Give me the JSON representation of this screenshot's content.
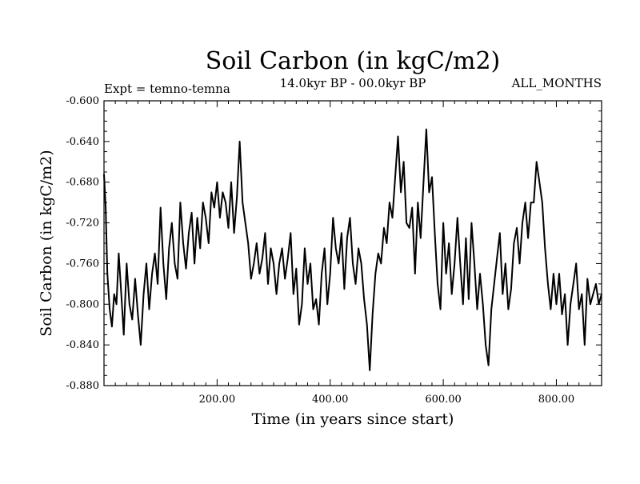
{
  "chart_data": {
    "type": "line",
    "title": "Soil Carbon (in kgC/m2)",
    "subtitle_left": "Expt = temno-temna",
    "subtitle_center": "14.0kyr BP - 00.0kyr BP",
    "subtitle_right": "ALL_MONTHS",
    "xlabel": "Time (in years since start)",
    "ylabel": "Soil Carbon (in kgC/m2)",
    "xlim": [
      0,
      880
    ],
    "ylim": [
      -0.88,
      -0.6
    ],
    "xticks": [
      200,
      400,
      600,
      800
    ],
    "xtick_labels": [
      "200.00",
      "400.00",
      "600.00",
      "800.00"
    ],
    "yticks": [
      -0.6,
      -0.64,
      -0.68,
      -0.72,
      -0.76,
      -0.8,
      -0.84,
      -0.88
    ],
    "ytick_labels": [
      "-0.600",
      "-0.640",
      "-0.680",
      "-0.720",
      "-0.760",
      "-0.800",
      "-0.840",
      "-0.880"
    ],
    "series": [
      {
        "name": "Soil Carbon",
        "x": [
          0,
          3,
          6,
          10,
          14,
          18,
          22,
          26,
          30,
          35,
          40,
          45,
          50,
          55,
          60,
          65,
          70,
          75,
          80,
          85,
          90,
          95,
          100,
          105,
          110,
          115,
          120,
          125,
          130,
          135,
          140,
          145,
          150,
          155,
          160,
          165,
          170,
          175,
          180,
          185,
          190,
          195,
          200,
          205,
          210,
          215,
          220,
          225,
          230,
          235,
          240,
          245,
          250,
          255,
          260,
          265,
          270,
          275,
          280,
          285,
          290,
          295,
          300,
          305,
          310,
          315,
          320,
          325,
          330,
          335,
          340,
          345,
          350,
          355,
          360,
          365,
          370,
          375,
          380,
          385,
          390,
          395,
          400,
          405,
          410,
          415,
          420,
          425,
          430,
          435,
          440,
          445,
          450,
          455,
          460,
          465,
          470,
          475,
          480,
          485,
          490,
          495,
          500,
          505,
          510,
          515,
          520,
          525,
          530,
          535,
          540,
          545,
          550,
          555,
          560,
          565,
          570,
          575,
          580,
          585,
          590,
          595,
          600,
          605,
          610,
          615,
          620,
          625,
          630,
          635,
          640,
          645,
          650,
          655,
          660,
          665,
          670,
          675,
          680,
          685,
          690,
          695,
          700,
          705,
          710,
          715,
          720,
          725,
          730,
          735,
          740,
          745,
          750,
          755,
          760,
          765,
          770,
          775,
          780,
          785,
          790,
          795,
          800,
          805,
          810,
          815,
          820,
          825,
          830,
          835,
          840,
          845,
          850,
          855,
          860,
          865,
          870,
          875,
          880
        ],
        "values": [
          -0.672,
          -0.705,
          -0.77,
          -0.805,
          -0.822,
          -0.79,
          -0.8,
          -0.75,
          -0.785,
          -0.83,
          -0.76,
          -0.8,
          -0.815,
          -0.775,
          -0.81,
          -0.84,
          -0.79,
          -0.76,
          -0.805,
          -0.77,
          -0.75,
          -0.78,
          -0.705,
          -0.76,
          -0.795,
          -0.745,
          -0.72,
          -0.76,
          -0.775,
          -0.7,
          -0.74,
          -0.765,
          -0.73,
          -0.71,
          -0.76,
          -0.715,
          -0.745,
          -0.7,
          -0.715,
          -0.74,
          -0.69,
          -0.705,
          -0.68,
          -0.715,
          -0.69,
          -0.7,
          -0.725,
          -0.68,
          -0.73,
          -0.695,
          -0.64,
          -0.7,
          -0.72,
          -0.74,
          -0.775,
          -0.76,
          -0.74,
          -0.77,
          -0.755,
          -0.73,
          -0.78,
          -0.745,
          -0.76,
          -0.79,
          -0.76,
          -0.745,
          -0.775,
          -0.755,
          -0.73,
          -0.79,
          -0.765,
          -0.82,
          -0.8,
          -0.745,
          -0.78,
          -0.76,
          -0.805,
          -0.795,
          -0.82,
          -0.77,
          -0.745,
          -0.8,
          -0.77,
          -0.715,
          -0.745,
          -0.76,
          -0.73,
          -0.785,
          -0.735,
          -0.715,
          -0.76,
          -0.78,
          -0.745,
          -0.76,
          -0.795,
          -0.82,
          -0.865,
          -0.81,
          -0.77,
          -0.75,
          -0.76,
          -0.725,
          -0.74,
          -0.7,
          -0.715,
          -0.675,
          -0.635,
          -0.69,
          -0.66,
          -0.72,
          -0.725,
          -0.705,
          -0.77,
          -0.7,
          -0.735,
          -0.68,
          -0.628,
          -0.69,
          -0.675,
          -0.73,
          -0.78,
          -0.805,
          -0.72,
          -0.77,
          -0.74,
          -0.79,
          -0.76,
          -0.715,
          -0.76,
          -0.8,
          -0.735,
          -0.795,
          -0.72,
          -0.76,
          -0.805,
          -0.77,
          -0.8,
          -0.84,
          -0.86,
          -0.805,
          -0.78,
          -0.755,
          -0.73,
          -0.79,
          -0.76,
          -0.805,
          -0.785,
          -0.74,
          -0.725,
          -0.76,
          -0.72,
          -0.7,
          -0.735,
          -0.7,
          -0.7,
          -0.66,
          -0.68,
          -0.7,
          -0.745,
          -0.78,
          -0.805,
          -0.77,
          -0.8,
          -0.77,
          -0.81,
          -0.79,
          -0.84,
          -0.8,
          -0.78,
          -0.76,
          -0.805,
          -0.79,
          -0.84,
          -0.775,
          -0.8,
          -0.79,
          -0.78,
          -0.8,
          -0.79
        ]
      }
    ]
  }
}
